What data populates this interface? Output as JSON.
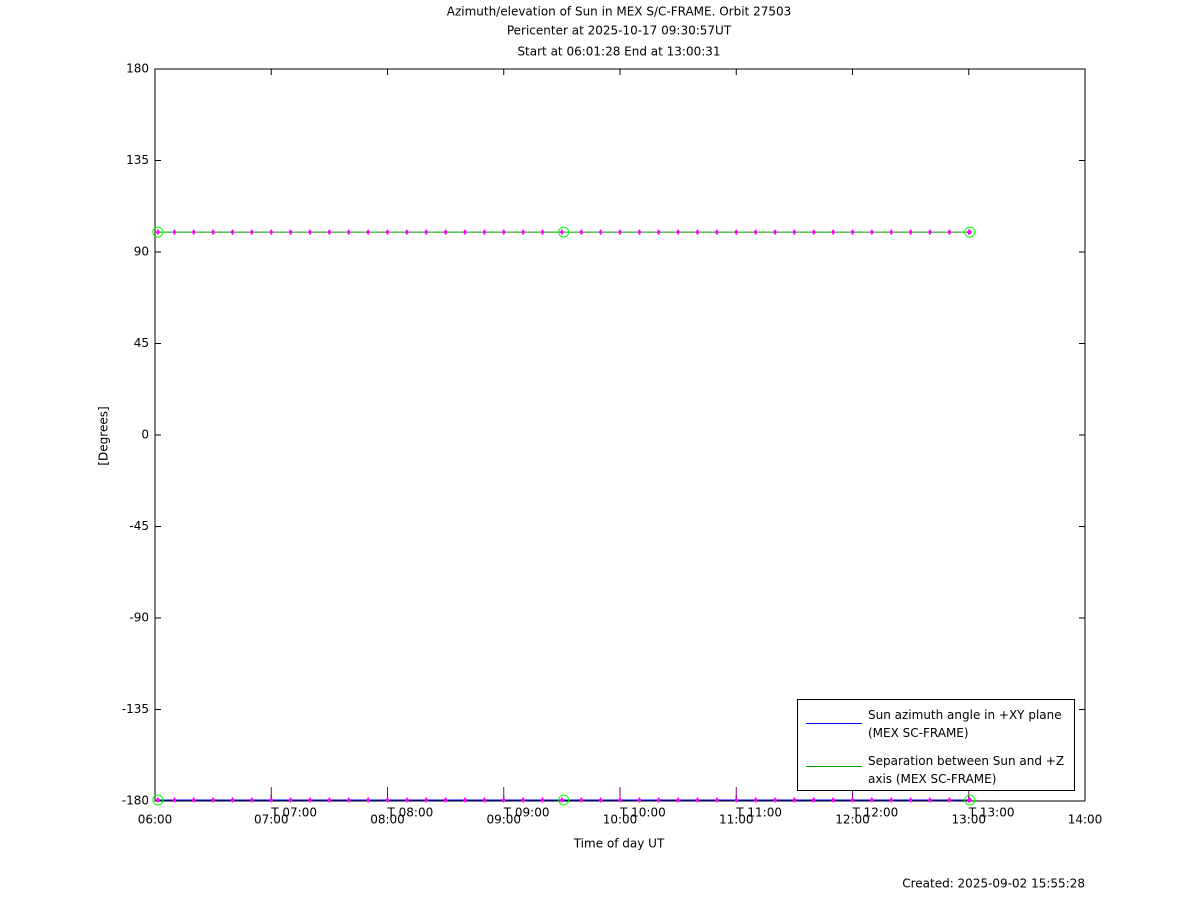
{
  "chart_data": {
    "type": "line",
    "title": "Azimuth/elevation of Sun in MEX S/C-FRAME.  Orbit 27503",
    "subtitle": "Pericenter at 2025-10-17 09:30:57UT",
    "subtitle2": "Start at 06:01:28 End at 13:00:31",
    "xlabel": "Time of day UT",
    "ylabel": "[Degrees]",
    "footer": "Created: 2025-09-02 15:55:28",
    "xlim": [
      6,
      14
    ],
    "xticks": [
      {
        "value": 6,
        "label": "06:00"
      },
      {
        "value": 7,
        "label": "07:00"
      },
      {
        "value": 8,
        "label": "08:00"
      },
      {
        "value": 9,
        "label": "09:00"
      },
      {
        "value": 10,
        "label": "10:00"
      },
      {
        "value": 11,
        "label": "11:00"
      },
      {
        "value": 12,
        "label": "12:00"
      },
      {
        "value": 13,
        "label": "13:00"
      },
      {
        "value": 14,
        "label": "14:00"
      }
    ],
    "ylim": [
      -180,
      180
    ],
    "yticks": [
      -180,
      -135,
      -90,
      -45,
      0,
      45,
      90,
      135,
      180
    ],
    "x": [
      6.0244,
      6.1667,
      6.3333,
      6.5,
      6.6667,
      6.8333,
      7,
      7.1667,
      7.3333,
      7.5,
      7.6667,
      7.8333,
      8,
      8.1667,
      8.3333,
      8.5,
      8.6667,
      8.8333,
      9,
      9.1667,
      9.3333,
      9.5,
      9.6667,
      9.8333,
      10,
      10.1667,
      10.3333,
      10.5,
      10.6667,
      10.8333,
      11,
      11.1667,
      11.3333,
      11.5,
      11.6667,
      11.8333,
      12,
      12.1667,
      12.3333,
      12.5,
      12.6667,
      12.8333,
      13,
      13.0086
    ],
    "series": [
      {
        "name": "Sun azimuth angle in +XY plane (MEX SC-FRAME)",
        "color": "#0000ff",
        "values": [
          -179.5,
          -179.5,
          -179.5,
          -179.5,
          -179.5,
          -179.5,
          -179.5,
          -179.5,
          -179.5,
          -179.5,
          -179.5,
          -179.5,
          -179.5,
          -179.5,
          -179.5,
          -179.5,
          -179.5,
          -179.5,
          -179.5,
          -179.5,
          -179.5,
          -179.5,
          -179.5,
          -179.5,
          -179.5,
          -179.5,
          -179.5,
          -179.5,
          -179.5,
          -179.5,
          -179.5,
          -179.5,
          -179.5,
          -179.5,
          -179.5,
          -179.5,
          -179.5,
          -179.5,
          -179.5,
          -179.5,
          -179.5,
          -179.5,
          -179.5,
          -179.5
        ]
      },
      {
        "name": "Separation between Sun and +Z axis (MEX SC-FRAME)",
        "color": "#00a000",
        "values": [
          99.8,
          99.8,
          99.8,
          99.8,
          99.8,
          99.8,
          99.8,
          99.8,
          99.8,
          99.8,
          99.8,
          99.8,
          99.8,
          99.8,
          99.8,
          99.8,
          99.8,
          99.8,
          99.8,
          99.8,
          99.8,
          99.8,
          99.8,
          99.8,
          99.8,
          99.8,
          99.8,
          99.8,
          99.8,
          99.8,
          99.8,
          99.8,
          99.8,
          99.8,
          99.8,
          99.8,
          99.8,
          99.8,
          99.8,
          99.8,
          99.8,
          99.8,
          99.8,
          99.8
        ]
      }
    ],
    "marker_color": "#ff00ff",
    "event_color": "#00ff00",
    "events": [
      6.0244,
      9.5158,
      13.0086
    ],
    "hour_labels": [
      {
        "x": 7,
        "text": "T 07:00"
      },
      {
        "x": 8,
        "text": "T 08:00"
      },
      {
        "x": 9,
        "text": "T 09:00"
      },
      {
        "x": 10,
        "text": "T 10:00"
      },
      {
        "x": 11,
        "text": "T 11:00"
      },
      {
        "x": 12,
        "text": "T 12:00"
      },
      {
        "x": 13,
        "text": "T 13:00"
      }
    ]
  }
}
